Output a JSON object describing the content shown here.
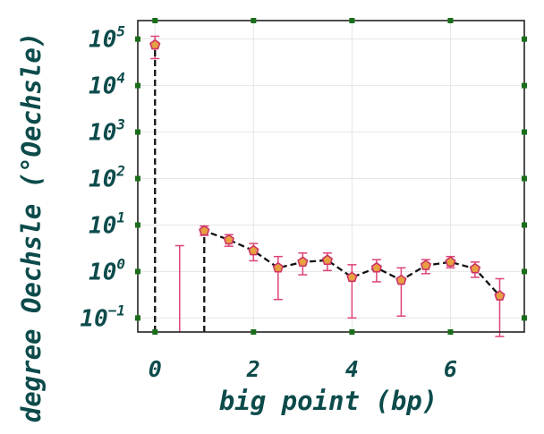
{
  "chart_data": {
    "type": "line",
    "title": "",
    "xlabel": "big point (bp)",
    "ylabel": "degree Oechsle (°Oechsle)",
    "xscale": "linear",
    "yscale": "log",
    "xlim": [
      -0.35,
      7.5
    ],
    "ylim": [
      0.05,
      250000
    ],
    "grid": true,
    "x_ticks": [
      {
        "value": 0,
        "label": "0"
      },
      {
        "value": 2,
        "label": "2"
      },
      {
        "value": 4,
        "label": "4"
      },
      {
        "value": 6,
        "label": "6"
      }
    ],
    "y_ticks": [
      {
        "value": 0.1,
        "base": "10",
        "exp": "−1"
      },
      {
        "value": 1,
        "base": "10",
        "exp": "0"
      },
      {
        "value": 10,
        "base": "10",
        "exp": "1"
      },
      {
        "value": 100,
        "base": "10",
        "exp": "2"
      },
      {
        "value": 1000,
        "base": "10",
        "exp": "3"
      },
      {
        "value": 10000,
        "base": "10",
        "exp": "4"
      },
      {
        "value": 100000,
        "base": "10",
        "exp": "5"
      }
    ],
    "series": [
      {
        "points": [
          {
            "x": 0.0,
            "y": 75000,
            "err_low": 38000,
            "err_high": 115000
          },
          {
            "x": 0.5,
            "y": null,
            "err_low": null,
            "err_high": 3.6
          },
          {
            "x": 1.0,
            "y": 7.5,
            "err_low": 6.0,
            "err_high": 9.5
          },
          {
            "x": 1.5,
            "y": 4.8,
            "err_low": 3.5,
            "err_high": 6.2
          },
          {
            "x": 2.0,
            "y": 2.8,
            "err_low": 1.7,
            "err_high": 4.0
          },
          {
            "x": 2.5,
            "y": 1.2,
            "err_low": 0.25,
            "err_high": 2.1
          },
          {
            "x": 3.0,
            "y": 1.6,
            "err_low": 0.85,
            "err_high": 2.5
          },
          {
            "x": 3.5,
            "y": 1.75,
            "err_low": 1.05,
            "err_high": 2.5
          },
          {
            "x": 4.0,
            "y": 0.75,
            "err_low": 0.1,
            "err_high": 1.4
          },
          {
            "x": 4.5,
            "y": 1.2,
            "err_low": 0.6,
            "err_high": 1.8
          },
          {
            "x": 5.0,
            "y": 0.65,
            "err_low": 0.11,
            "err_high": 1.2
          },
          {
            "x": 5.5,
            "y": 1.35,
            "err_low": 0.9,
            "err_high": 1.8
          },
          {
            "x": 6.0,
            "y": 1.6,
            "err_low": 1.2,
            "err_high": 2.1
          },
          {
            "x": 6.5,
            "y": 1.15,
            "err_low": 0.75,
            "err_high": 1.6
          },
          {
            "x": 7.0,
            "y": 0.3,
            "err_low": 0.04,
            "err_high": 0.7
          }
        ]
      }
    ],
    "colors": {
      "line": "#111111",
      "marker_fill": "#e8a040",
      "marker_edge": "#cc3366",
      "errorbar": "#dd4477",
      "tick_marker": "#1a6e1a",
      "text": "#0d4b4b",
      "grid": "#e6e6e6"
    }
  }
}
